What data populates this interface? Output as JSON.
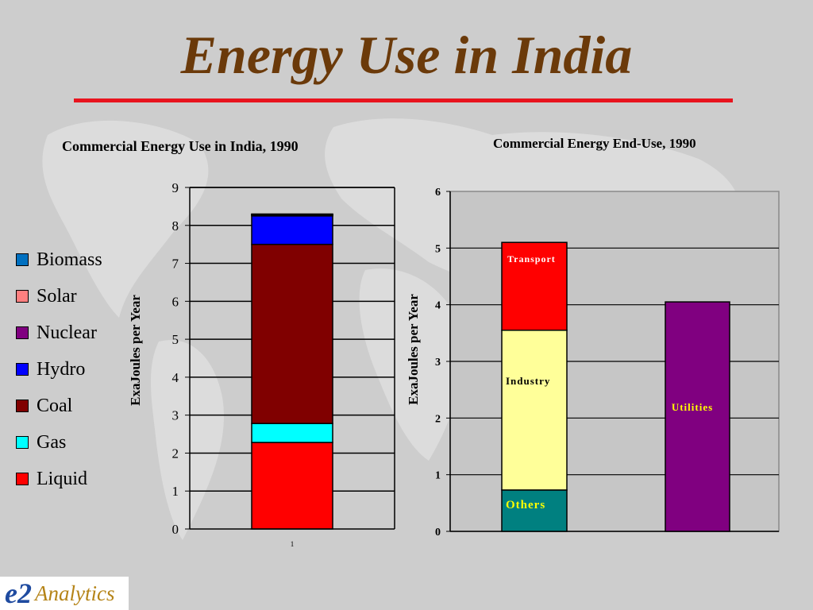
{
  "slide": {
    "title": "Energy Use in India"
  },
  "logo": {
    "e2": "e2",
    "analytics": "Analytics"
  },
  "chart_data": [
    {
      "type": "bar",
      "stacked": true,
      "title": "Commercial Energy Use in India, 1990",
      "xlabel": "",
      "ylabel": "ExaJoules per Year",
      "ylim": [
        0,
        9
      ],
      "categories": [
        "1"
      ],
      "grid": true,
      "legend_position": "left",
      "series": [
        {
          "name": "Liquid",
          "values": [
            2.28
          ],
          "color": "#ff0000"
        },
        {
          "name": "Gas",
          "values": [
            0.5
          ],
          "color": "#00ffff"
        },
        {
          "name": "Coal",
          "values": [
            4.72
          ],
          "color": "#800000"
        },
        {
          "name": "Hydro",
          "values": [
            0.75
          ],
          "color": "#0000ff"
        },
        {
          "name": "Nuclear",
          "values": [
            0.03
          ],
          "color": "#800080"
        },
        {
          "name": "Solar",
          "values": [
            0.01
          ],
          "color": "#ff8080"
        },
        {
          "name": "Biomass",
          "values": [
            0.01
          ],
          "color": "#0070c0"
        }
      ],
      "legend_order": [
        "Biomass",
        "Solar",
        "Nuclear",
        "Hydro",
        "Coal",
        "Gas",
        "Liquid"
      ]
    },
    {
      "type": "bar",
      "stacked": true,
      "title": "Commercial Energy End-Use, 1990",
      "xlabel": "",
      "ylabel": "ExaJoules per Year",
      "ylim": [
        0,
        6
      ],
      "grid": true,
      "bars": [
        {
          "segments": [
            {
              "label": "Others",
              "value": 0.73,
              "color": "#008080",
              "label_color": "#ffff00"
            },
            {
              "label": "Industry",
              "value": 2.82,
              "color": "#ffff99",
              "label_color": "#000000"
            },
            {
              "label": "Transport",
              "value": 1.55,
              "color": "#ff0000",
              "label_color": "#ffffff"
            }
          ]
        },
        {
          "segments": [
            {
              "label": "Utilities",
              "value": 4.05,
              "color": "#800080",
              "label_color": "#ffff00"
            }
          ]
        }
      ]
    }
  ]
}
